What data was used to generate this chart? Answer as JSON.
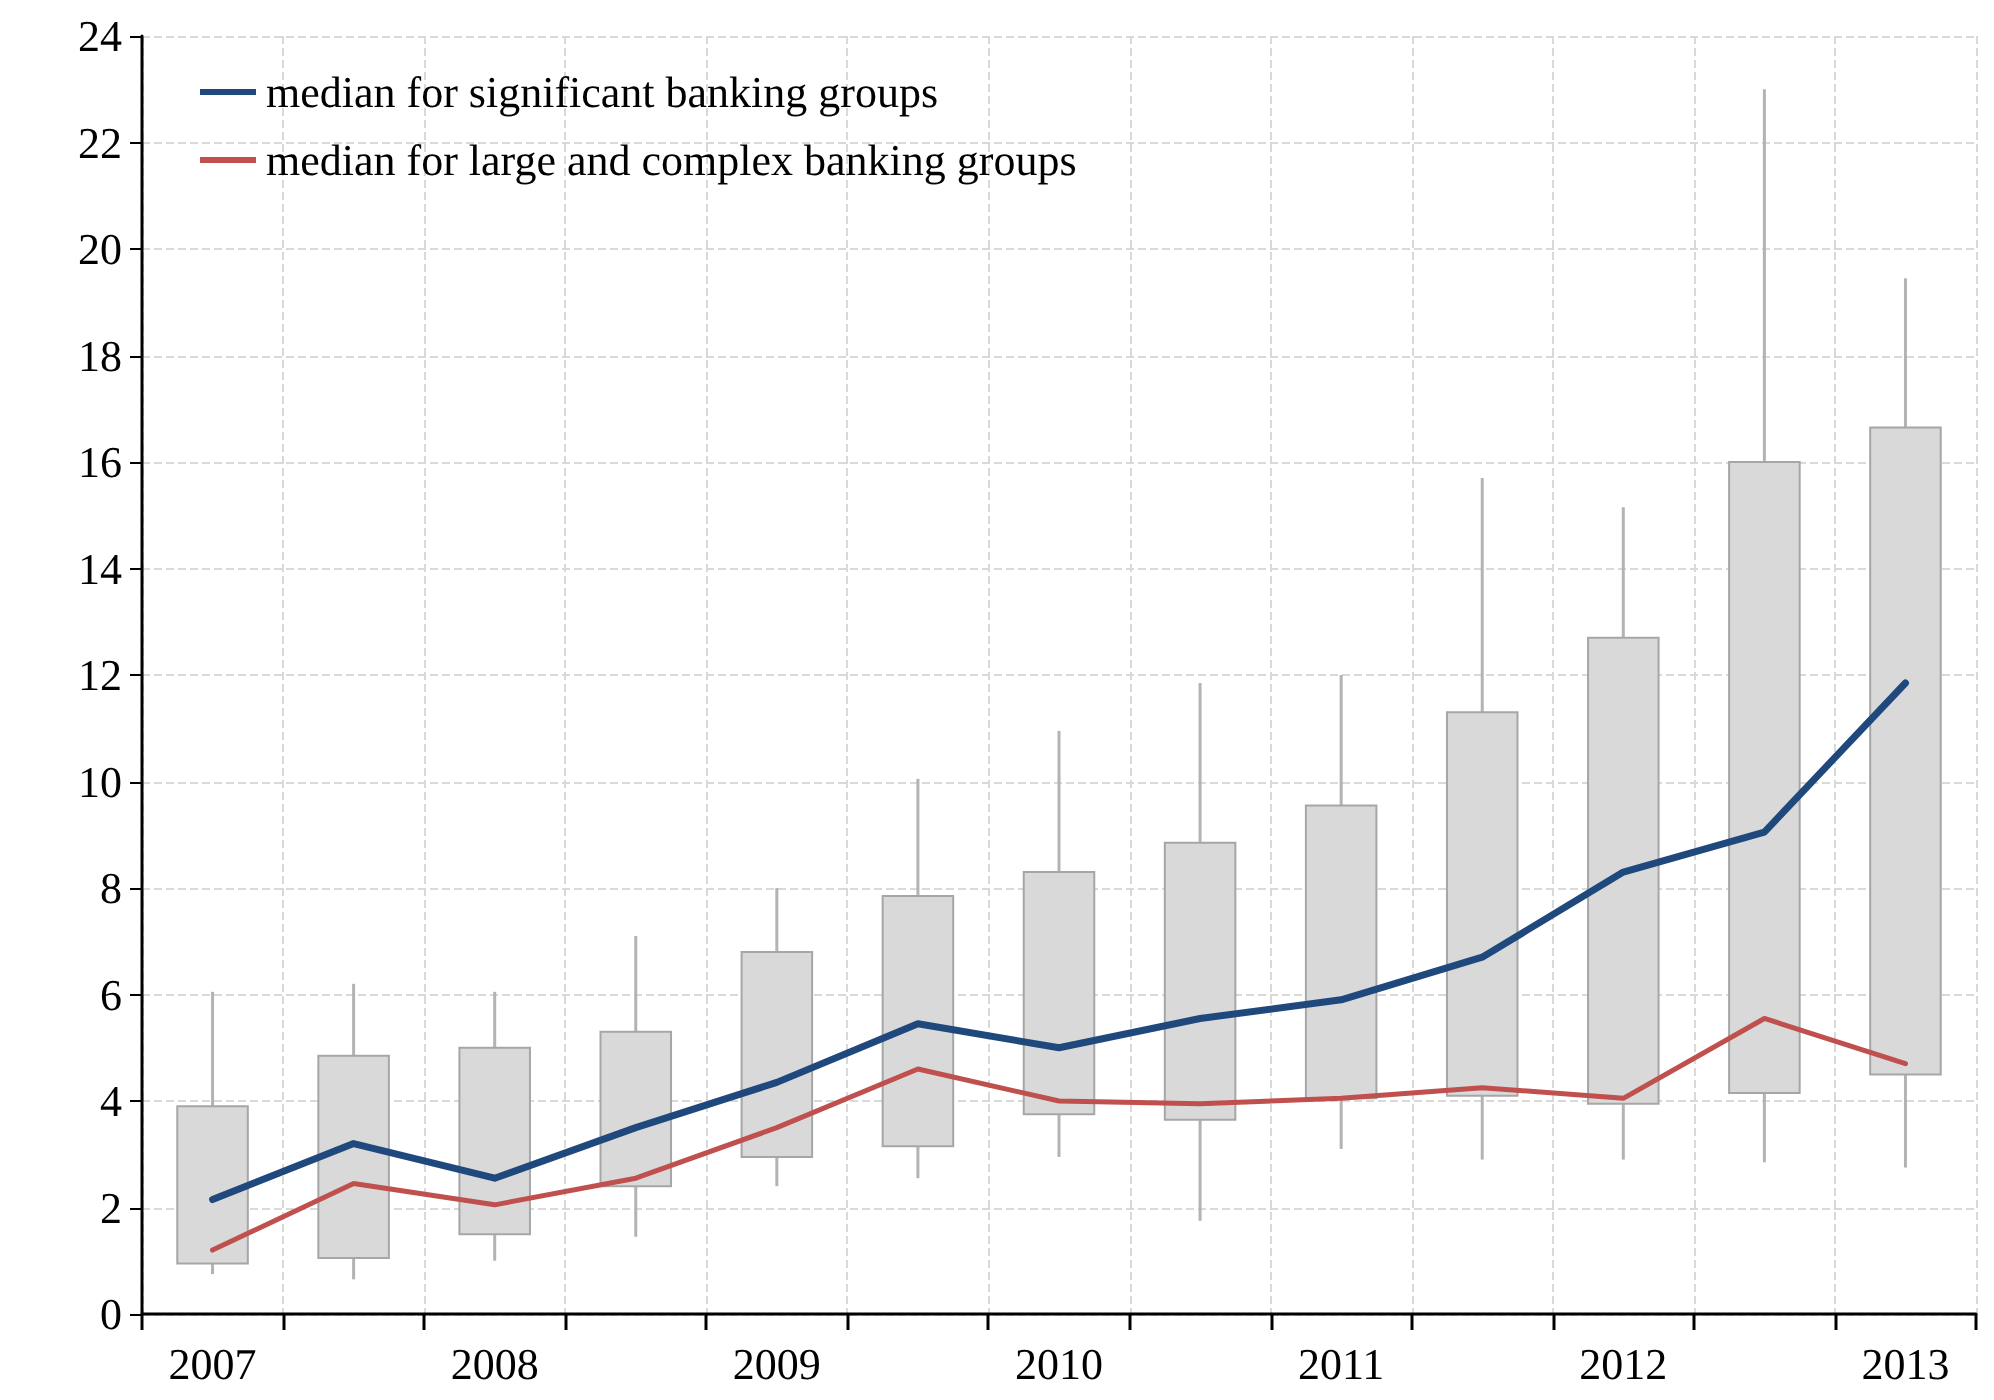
{
  "chart_data": {
    "type": "line",
    "categories": [
      "2007",
      null,
      "2008",
      null,
      "2009",
      null,
      "2010",
      null,
      "2011",
      null,
      "2012",
      null,
      "2013"
    ],
    "ylim": [
      0,
      24
    ],
    "yticks": [
      0,
      2,
      4,
      6,
      8,
      10,
      12,
      14,
      16,
      18,
      20,
      22,
      24
    ],
    "grid": true,
    "legend": "top left",
    "marker": "none",
    "line_style": "solid",
    "series": [
      {
        "type": "box",
        "color": "#d9d9d9",
        "boxes": [
          {
            "low": 0.75,
            "q1": 0.95,
            "q3": 3.9,
            "high": 6.05
          },
          {
            "low": 0.65,
            "q1": 1.05,
            "q3": 4.85,
            "high": 6.2
          },
          {
            "low": 1.0,
            "q1": 1.5,
            "q3": 5.0,
            "high": 6.05
          },
          {
            "low": 1.45,
            "q1": 2.4,
            "q3": 5.3,
            "high": 7.1
          },
          {
            "low": 2.4,
            "q1": 2.95,
            "q3": 6.8,
            "high": 8.0
          },
          {
            "low": 2.55,
            "q1": 3.15,
            "q3": 7.85,
            "high": 10.05
          },
          {
            "low": 2.95,
            "q1": 3.75,
            "q3": 8.3,
            "high": 10.95
          },
          {
            "low": 1.75,
            "q1": 3.65,
            "q3": 8.85,
            "high": 11.85
          },
          {
            "low": 3.1,
            "q1": 4.05,
            "q3": 9.55,
            "high": 12.0
          },
          {
            "low": 2.9,
            "q1": 4.1,
            "q3": 11.3,
            "high": 15.7
          },
          {
            "low": 2.9,
            "q1": 3.95,
            "q3": 12.7,
            "high": 15.15
          },
          {
            "low": 2.85,
            "q1": 4.15,
            "q3": 16.0,
            "high": 23.0
          },
          {
            "low": 2.75,
            "q1": 4.5,
            "q3": 16.65,
            "high": 19.45
          }
        ]
      },
      {
        "name": "median for significant banking groups",
        "color": "#1f497d",
        "values": [
          2.15,
          3.2,
          2.55,
          3.5,
          4.35,
          5.45,
          5.0,
          5.55,
          5.9,
          6.7,
          8.3,
          9.05,
          11.85
        ]
      },
      {
        "name": "median for large and complex banking groups",
        "color": "#c0504d",
        "values": [
          1.2,
          2.45,
          2.05,
          2.55,
          3.5,
          4.6,
          4.0,
          3.95,
          4.05,
          4.25,
          4.05,
          5.55,
          4.7
        ]
      }
    ]
  }
}
